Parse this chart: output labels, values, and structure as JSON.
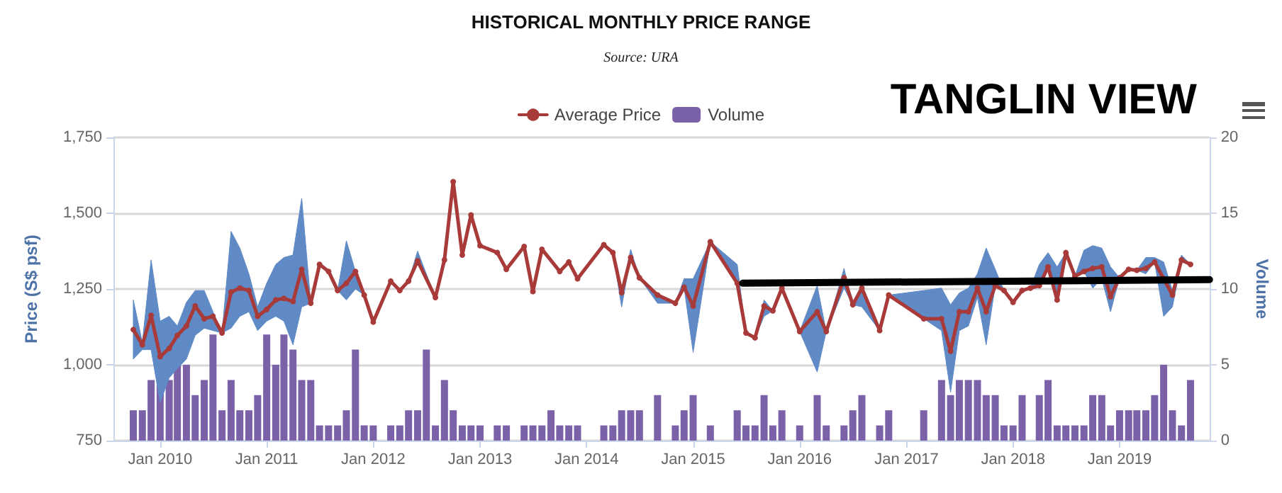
{
  "chart_data": {
    "type": "line",
    "title": "HISTORICAL MONTHLY PRICE RANGE",
    "subtitle": "Source: URA",
    "annotations": [
      "TANGLIN VIEW"
    ],
    "ylabel": "Price (S$ psf)",
    "y2label": "Volume",
    "x": [
      "2009-10",
      "2009-11",
      "2009-12",
      "2010-01",
      "2010-02",
      "2010-03",
      "2010-04",
      "2010-05",
      "2010-06",
      "2010-07",
      "2010-08",
      "2010-09",
      "2010-10",
      "2010-11",
      "2010-12",
      "2011-01",
      "2011-02",
      "2011-03",
      "2011-04",
      "2011-05",
      "2011-06",
      "2011-07",
      "2011-08",
      "2011-09",
      "2011-10",
      "2011-11",
      "2011-12",
      "2012-01",
      "2012-02",
      "2012-03",
      "2012-04",
      "2012-05",
      "2012-06",
      "2012-07",
      "2012-08",
      "2012-09",
      "2012-10",
      "2012-11",
      "2012-12",
      "2013-01",
      "2013-02",
      "2013-03",
      "2013-04",
      "2013-05",
      "2013-06",
      "2013-07",
      "2013-08",
      "2013-09",
      "2013-10",
      "2013-11",
      "2013-12",
      "2014-01",
      "2014-02",
      "2014-03",
      "2014-04",
      "2014-05",
      "2014-06",
      "2014-07",
      "2014-08",
      "2014-09",
      "2014-10",
      "2014-11",
      "2014-12",
      "2015-01",
      "2015-02",
      "2015-03",
      "2015-04",
      "2015-05",
      "2015-06",
      "2015-07",
      "2015-08",
      "2015-09",
      "2015-10",
      "2015-11",
      "2015-12",
      "2016-01",
      "2016-02",
      "2016-03",
      "2016-04",
      "2016-05",
      "2016-06",
      "2016-07",
      "2016-08",
      "2016-09",
      "2016-10",
      "2016-11",
      "2016-12",
      "2017-01",
      "2017-02",
      "2017-03",
      "2017-04",
      "2017-05",
      "2017-06",
      "2017-07",
      "2017-08",
      "2017-09",
      "2017-10",
      "2017-11",
      "2017-12",
      "2018-01",
      "2018-02",
      "2018-03",
      "2018-04",
      "2018-05",
      "2018-06",
      "2018-07",
      "2018-08",
      "2018-09",
      "2018-10",
      "2018-11",
      "2018-12",
      "2019-01",
      "2019-02",
      "2019-03",
      "2019-04",
      "2019-05",
      "2019-06",
      "2019-07",
      "2019-08",
      "2019-09"
    ],
    "series": [
      {
        "name": "Volume",
        "type": "bar",
        "axis": "y2",
        "color": "#7b62a8",
        "values": [
          2,
          2,
          4,
          4,
          4,
          5,
          5,
          3,
          4,
          7,
          2,
          4,
          2,
          2,
          3,
          7,
          5,
          7,
          6,
          4,
          4,
          1,
          1,
          1,
          2,
          6,
          1,
          1,
          null,
          1,
          1,
          2,
          2,
          6,
          1,
          4,
          2,
          1,
          1,
          1,
          null,
          1,
          1,
          null,
          1,
          1,
          1,
          2,
          1,
          1,
          1,
          null,
          null,
          1,
          1,
          2,
          2,
          2,
          null,
          3,
          null,
          1,
          2,
          3,
          null,
          1,
          null,
          null,
          2,
          1,
          1,
          3,
          1,
          2,
          null,
          1,
          null,
          3,
          1,
          null,
          1,
          2,
          3,
          null,
          1,
          2,
          null,
          null,
          null,
          2,
          null,
          4,
          3,
          4,
          4,
          4,
          3,
          3,
          1,
          1,
          3,
          null,
          3,
          4,
          1,
          1,
          1,
          1,
          3,
          3,
          1,
          2,
          2,
          2,
          2,
          3,
          5,
          2,
          1,
          4
        ]
      },
      {
        "name": "Average Price",
        "color": "#a83a3a",
        "values": [
          1116,
          1066,
          1163,
          1027,
          1054,
          1097,
          1128,
          1194,
          1152,
          1160,
          1105,
          1240,
          1253,
          1245,
          1160,
          1183,
          1214,
          1219,
          1209,
          1315,
          1203,
          1331,
          1308,
          1245,
          1269,
          1308,
          1230,
          1141,
          null,
          1276,
          1245,
          1276,
          1343,
          null,
          1222,
          1346,
          1604,
          1362,
          1494,
          1393,
          null,
          1370,
          1315,
          null,
          1390,
          1242,
          1381,
          null,
          1308,
          1339,
          1284,
          null,
          null,
          1396,
          1370,
          1238,
          1354,
          1287,
          null,
          1230,
          null,
          1203,
          1256,
          1194,
          null,
          1406,
          null,
          null,
          1269,
          1105,
          1089,
          1194,
          1178,
          1253,
          null,
          1110,
          null,
          1175,
          1110,
          null,
          1287,
          1198,
          1253,
          null,
          1113,
          1230,
          null,
          null,
          null,
          1152,
          null,
          1152,
          1045,
          1175,
          1175,
          1253,
          1175,
          1261,
          1245,
          1206,
          1245,
          1253,
          1261,
          1323,
          1214,
          1370,
          1292,
          1308,
          1318,
          1323,
          1225,
          1287,
          1315,
          1312,
          1318,
          1339,
          1284,
          1230,
          1346,
          1331
        ],
        "lower": [
          1019,
          1050,
          1050,
          876,
          957,
          988,
          1019,
          1097,
          1121,
          1113,
          1105,
          1121,
          1160,
          1175,
          1113,
          1144,
          1160,
          1144,
          1066,
          1191,
          1203,
          1331,
          1308,
          1245,
          1214,
          1250,
          1230,
          1141,
          null,
          1276,
          1245,
          1276,
          1343,
          null,
          1222,
          1346,
          1604,
          1362,
          1494,
          1393,
          null,
          1370,
          1315,
          null,
          1390,
          1242,
          1381,
          null,
          1308,
          1339,
          1284,
          null,
          null,
          1396,
          1370,
          1191,
          1354,
          1287,
          null,
          1203,
          null,
          1203,
          1256,
          1041,
          null,
          1406,
          null,
          null,
          1269,
          1105,
          1089,
          1160,
          1178,
          1253,
          null,
          1110,
          null,
          976,
          1110,
          null,
          1253,
          1198,
          1191,
          null,
          1113,
          1230,
          null,
          null,
          null,
          1152,
          null,
          1113,
          910,
          1113,
          1128,
          1222,
          1066,
          1261,
          1245,
          1206,
          1245,
          1253,
          1261,
          1323,
          1214,
          1370,
          1292,
          1308,
          1253,
          1284,
          1175,
          1287,
          1315,
          1312,
          1300,
          1339,
          1160,
          1191,
          1339,
          1331
        ],
        "upper": [
          1214,
          1074,
          1346,
          1144,
          1160,
          1128,
          1206,
          1245,
          1245,
          1175,
          1105,
          1440,
          1385,
          1300,
          1191,
          1269,
          1331,
          1354,
          1362,
          1549,
          1203,
          1331,
          1308,
          1245,
          1409,
          1308,
          1230,
          1141,
          null,
          1276,
          1245,
          1276,
          1375,
          null,
          1222,
          1346,
          1604,
          1362,
          1494,
          1393,
          null,
          1370,
          1315,
          null,
          1390,
          1242,
          1381,
          null,
          1308,
          1339,
          1284,
          null,
          null,
          1396,
          1370,
          1238,
          1381,
          1287,
          null,
          1230,
          null,
          1203,
          1284,
          1284,
          null,
          1406,
          null,
          null,
          1331,
          1105,
          1089,
          1214,
          1178,
          1253,
          null,
          1110,
          null,
          1261,
          1110,
          null,
          1318,
          1198,
          1253,
          null,
          1113,
          1230,
          null,
          null,
          null,
          1245,
          null,
          1253,
          1198,
          1237,
          1253,
          1300,
          1385,
          1315,
          1245,
          1206,
          1245,
          1253,
          1331,
          1370,
          1323,
          1370,
          1292,
          1378,
          1393,
          1385,
          1323,
          1287,
          1315,
          1312,
          1354,
          1354,
          1339,
          1245,
          1362,
          1331
        ]
      },
      {
        "color": "#000000",
        "marker": "none",
        "x": [
          "2015-06-20",
          "2019-11-05"
        ],
        "values": [
          1269,
          1281
        ]
      }
    ],
    "xlim": [
      "2009-07-25",
      "2019-11-05"
    ],
    "xticks": [
      {
        "value": "2010-01",
        "label": "Jan 2010"
      },
      {
        "value": "2011-01",
        "label": "Jan 2011"
      },
      {
        "value": "2012-01",
        "label": "Jan 2012"
      },
      {
        "value": "2013-01",
        "label": "Jan 2013"
      },
      {
        "value": "2014-01",
        "label": "Jan 2014"
      },
      {
        "value": "2015-01",
        "label": "Jan 2015"
      },
      {
        "value": "2016-01",
        "label": "Jan 2016"
      },
      {
        "value": "2017-01",
        "label": "Jan 2017"
      },
      {
        "value": "2018-01",
        "label": "Jan 2018"
      },
      {
        "value": "2019-01",
        "label": "Jan 2019"
      }
    ],
    "ylim": [
      750,
      1750
    ],
    "yticks": [
      {
        "value": 750,
        "label": "750"
      },
      {
        "value": 1000,
        "label": "1,000"
      },
      {
        "value": 1250,
        "label": "1,250"
      },
      {
        "value": 1500,
        "label": "1,500"
      },
      {
        "value": 1750,
        "label": "1,750"
      }
    ],
    "y2lim": [
      0,
      20
    ],
    "y2ticks": [
      0,
      5,
      10,
      15,
      20
    ],
    "grid": "y",
    "legend": "top",
    "marker": "circle",
    "line_style": "solid"
  }
}
